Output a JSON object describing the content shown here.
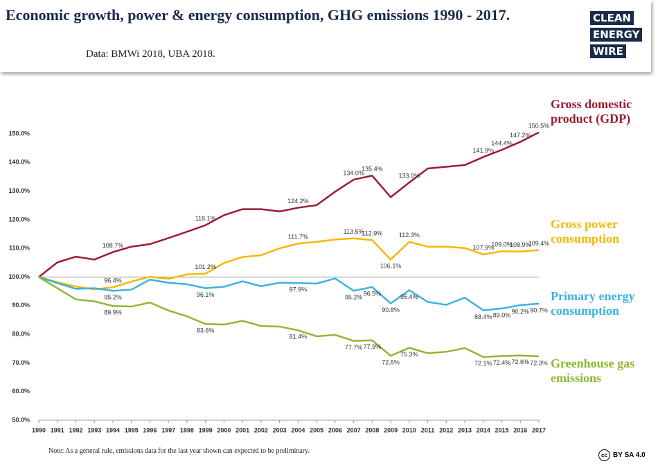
{
  "header": {
    "title": "Economic growth, power & energy consumption, GHG emissions 1990 - 2017.",
    "subtitle": "Data: BMWi 2018, UBA 2018.",
    "logo": [
      "CLEAN",
      "ENERGY",
      "WIRE"
    ]
  },
  "chart_data": {
    "type": "line",
    "categories": [
      "1990",
      "1991",
      "1992",
      "1993",
      "1994",
      "1995",
      "1996",
      "1997",
      "1998",
      "1999",
      "2000",
      "2001",
      "2002",
      "2003",
      "2004",
      "2005",
      "2006",
      "2007",
      "2008",
      "2009",
      "2010",
      "2011",
      "2012",
      "2013",
      "2014",
      "2015",
      "2016",
      "2017"
    ],
    "ylim": [
      50,
      150
    ],
    "yticks": [
      {
        "value": 50,
        "label": "50.0%"
      },
      {
        "value": 60,
        "label": "60.0%"
      },
      {
        "value": 70,
        "label": "70.0%"
      },
      {
        "value": 80,
        "label": "80.0%"
      },
      {
        "value": 90,
        "label": "90.0%"
      },
      {
        "value": 100,
        "label": "100.0%"
      },
      {
        "value": 110,
        "label": "110.0%"
      },
      {
        "value": 120,
        "label": "120.0%"
      },
      {
        "value": 130,
        "label": "130.0%"
      },
      {
        "value": 140,
        "label": "140.0%"
      },
      {
        "value": 150,
        "label": "150.0%"
      }
    ],
    "reference_line": 100,
    "series": [
      {
        "name": "Gross domestic product (GDP)",
        "color": "#9b1b30",
        "values": [
          100,
          105.1,
          107.1,
          106.1,
          108.7,
          110.6,
          111.5,
          113.6,
          115.8,
          118.1,
          121.6,
          123.7,
          123.7,
          122.9,
          124.2,
          125.1,
          129.8,
          134.0,
          135.4,
          127.9,
          133.0,
          137.9,
          138.5,
          139.1,
          141.9,
          144.4,
          147.2,
          150.5
        ],
        "value_labels": [
          null,
          null,
          null,
          null,
          "108.7%",
          null,
          null,
          null,
          null,
          "118.1%",
          null,
          null,
          null,
          null,
          "124.2%",
          null,
          null,
          "134.0%",
          "135.4%",
          null,
          "133.0%",
          null,
          null,
          null,
          "141.9%",
          "144.4%",
          "147.2%",
          "150.5%"
        ]
      },
      {
        "name": "Gross power consumption",
        "color": "#f5b800",
        "values": [
          100,
          98.2,
          96.7,
          95.7,
          96.4,
          98.4,
          100.1,
          99.4,
          100.9,
          101.2,
          104.9,
          107.0,
          107.6,
          110.0,
          111.7,
          112.3,
          113.1,
          113.5,
          112.9,
          106.1,
          112.3,
          110.6,
          110.6,
          110.1,
          107.9,
          109.0,
          108.9,
          109.4
        ],
        "value_labels": [
          null,
          null,
          null,
          null,
          "96.4%",
          null,
          null,
          null,
          null,
          "101.2%",
          null,
          null,
          null,
          null,
          "111.7%",
          null,
          null,
          "113.5%",
          "112.9%",
          "106.1%",
          "112.3%",
          null,
          null,
          null,
          "107.9%",
          "109.0%",
          "108.9%",
          "109.4%"
        ]
      },
      {
        "name": "Primary energy consumption",
        "color": "#3bb3e0",
        "values": [
          100,
          97.9,
          95.9,
          96.1,
          95.2,
          95.6,
          99.1,
          98.0,
          97.5,
          96.1,
          96.6,
          98.5,
          96.8,
          98.0,
          97.9,
          97.7,
          99.5,
          95.2,
          96.5,
          90.8,
          95.4,
          91.3,
          90.3,
          92.8,
          88.4,
          89.0,
          90.2,
          90.7
        ],
        "value_labels": [
          null,
          null,
          null,
          null,
          "95.2%",
          null,
          null,
          null,
          null,
          "96.1%",
          null,
          null,
          null,
          null,
          "97.9%",
          null,
          null,
          "95.2%",
          "96.5%",
          "90.8%",
          "95.4%",
          null,
          null,
          null,
          "88.4%",
          "89.0%",
          "90.2%",
          "90.7%"
        ]
      },
      {
        "name": "Greenhouse gas emissions",
        "color": "#8db833",
        "values": [
          100,
          96.1,
          92.2,
          91.5,
          89.9,
          89.7,
          91.1,
          88.3,
          86.3,
          83.6,
          83.4,
          84.7,
          82.9,
          82.7,
          81.4,
          79.3,
          79.8,
          77.7,
          77.9,
          72.5,
          75.3,
          73.4,
          73.9,
          75.2,
          72.1,
          72.4,
          72.6,
          72.3
        ],
        "value_labels": [
          null,
          null,
          null,
          null,
          "89.9%",
          null,
          null,
          null,
          null,
          "83.6%",
          null,
          null,
          null,
          null,
          "81.4%",
          null,
          null,
          "77.7%",
          "77.9%",
          "72.5%",
          "75.3%",
          null,
          null,
          null,
          "72.1%",
          "72.4%",
          "72.6%",
          "72.3%"
        ]
      }
    ]
  },
  "footer": {
    "note": "Note: As a general rule, emissions data for the last year shown can expected to be preliminary.",
    "license": "BY SA 4.0"
  }
}
